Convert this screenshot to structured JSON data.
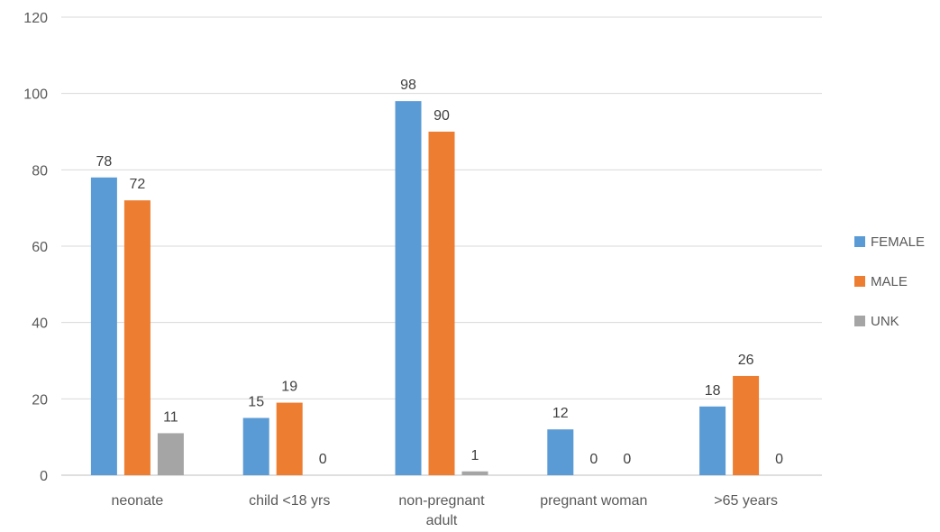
{
  "chart_data": {
    "type": "bar",
    "categories": [
      "neonate",
      "child <18 yrs",
      "non-pregnant adult",
      "pregnant woman",
      ">65 years"
    ],
    "series": [
      {
        "name": "FEMALE",
        "color": "#5B9BD5",
        "values": [
          78,
          15,
          98,
          12,
          18
        ]
      },
      {
        "name": "MALE",
        "color": "#ED7D31",
        "values": [
          72,
          19,
          90,
          0,
          26
        ]
      },
      {
        "name": "UNK",
        "color": "#A5A5A5",
        "values": [
          11,
          0,
          1,
          0,
          0
        ]
      }
    ],
    "y_ticks": [
      0,
      20,
      40,
      60,
      80,
      100,
      120
    ],
    "ylim": [
      0,
      120
    ],
    "grid": true,
    "legend_position": "right",
    "data_labels": true
  }
}
